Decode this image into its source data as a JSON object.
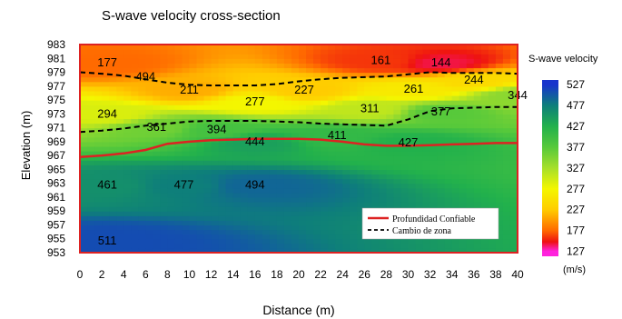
{
  "chart_data": {
    "type": "heatmap",
    "title": "S-wave velocity cross-section",
    "xlabel": "Distance (m)",
    "ylabel": "Elevation (m)",
    "xlim": [
      0,
      40
    ],
    "ylim": [
      953,
      983
    ],
    "x_ticks": [
      "0",
      "2",
      "4",
      "6",
      "8",
      "10",
      "12",
      "14",
      "16",
      "18",
      "20",
      "22",
      "24",
      "26",
      "28",
      "30",
      "32",
      "34",
      "36",
      "38",
      "40"
    ],
    "y_ticks": [
      "953",
      "955",
      "957",
      "959",
      "961",
      "963",
      "965",
      "967",
      "969",
      "971",
      "973",
      "975",
      "977",
      "979",
      "981",
      "983"
    ],
    "colorbar": {
      "title": "S-wave velocity",
      "unit": "(m/s)",
      "ticks": [
        "527",
        "477",
        "427",
        "377",
        "327",
        "277",
        "227",
        "177",
        "127"
      ],
      "stops": [
        {
          "value": 527,
          "color": "#1734cc"
        },
        {
          "value": 477,
          "color": "#0e7f7a"
        },
        {
          "value": 427,
          "color": "#22b14c"
        },
        {
          "value": 377,
          "color": "#57c93b"
        },
        {
          "value": 327,
          "color": "#a6df2a"
        },
        {
          "value": 277,
          "color": "#f4f600"
        },
        {
          "value": 227,
          "color": "#ffcc00"
        },
        {
          "value": 177,
          "color": "#ff6a00"
        },
        {
          "value": 150,
          "color": "#ee1111"
        },
        {
          "value": 127,
          "color": "#ff22dd"
        }
      ]
    },
    "velocity_labels": [
      {
        "text": "177",
        "x": 2.5,
        "y": 980.3
      },
      {
        "text": "494",
        "x": 6.0,
        "y": 978.3
      },
      {
        "text": "161",
        "x": 27.5,
        "y": 980.6
      },
      {
        "text": "144",
        "x": 33.0,
        "y": 980.3
      },
      {
        "text": "211",
        "x": 10.0,
        "y": 976.4
      },
      {
        "text": "227",
        "x": 20.5,
        "y": 976.4
      },
      {
        "text": "261",
        "x": 30.5,
        "y": 976.5
      },
      {
        "text": "244",
        "x": 36.0,
        "y": 977.8
      },
      {
        "text": "344",
        "x": 40.0,
        "y": 975.6
      },
      {
        "text": "277",
        "x": 16.0,
        "y": 974.7
      },
      {
        "text": "294",
        "x": 2.5,
        "y": 972.9
      },
      {
        "text": "311",
        "x": 26.5,
        "y": 973.7
      },
      {
        "text": "377",
        "x": 33.0,
        "y": 973.2
      },
      {
        "text": "361",
        "x": 7.0,
        "y": 971.0
      },
      {
        "text": "394",
        "x": 12.5,
        "y": 970.7
      },
      {
        "text": "411",
        "x": 23.5,
        "y": 969.8
      },
      {
        "text": "444",
        "x": 16.0,
        "y": 968.9
      },
      {
        "text": "427",
        "x": 30.0,
        "y": 968.8
      },
      {
        "text": "461",
        "x": 2.5,
        "y": 962.7
      },
      {
        "text": "477",
        "x": 9.5,
        "y": 962.7
      },
      {
        "text": "494",
        "x": 16.0,
        "y": 962.7
      },
      {
        "text": "511",
        "x": 2.5,
        "y": 954.6
      }
    ],
    "series": [
      {
        "name": "Profundidad Confiable",
        "color": "#dd2222",
        "style": "solid",
        "x": [
          0,
          2,
          4,
          6,
          8,
          10,
          12,
          14,
          16,
          18,
          20,
          22,
          24,
          26,
          28,
          30,
          32,
          34,
          36,
          38,
          40
        ],
        "y": [
          966.8,
          967.0,
          967.3,
          967.8,
          968.7,
          969.0,
          969.2,
          969.3,
          969.4,
          969.4,
          969.4,
          969.3,
          969.0,
          968.6,
          968.4,
          968.4,
          968.5,
          968.6,
          968.7,
          968.8,
          968.8
        ]
      },
      {
        "name": "Cambio de zona",
        "color": "#000000",
        "style": "dashed",
        "x": [
          0,
          2,
          4,
          6,
          8,
          10,
          12,
          14,
          16,
          18,
          20,
          22,
          24,
          26,
          28,
          30,
          32,
          34,
          36,
          38,
          40
        ],
        "y": [
          970.4,
          970.6,
          970.9,
          971.3,
          971.6,
          971.9,
          972.0,
          972.0,
          972.0,
          971.9,
          971.8,
          971.6,
          971.5,
          971.4,
          971.3,
          972.2,
          973.4,
          973.8,
          973.9,
          974.0,
          974.0
        ]
      },
      {
        "name": "",
        "color": "#000000",
        "style": "dashed",
        "x": [
          0,
          2,
          4,
          6,
          8,
          10,
          12,
          14,
          16,
          18,
          20,
          22,
          24,
          26,
          28,
          30,
          32,
          34,
          36,
          38,
          40
        ],
        "y": [
          979.0,
          978.8,
          978.5,
          978.0,
          977.5,
          977.2,
          977.1,
          977.1,
          977.1,
          977.3,
          977.7,
          978.0,
          978.2,
          978.3,
          978.4,
          978.7,
          979.0,
          978.9,
          978.9,
          978.9,
          978.8
        ]
      }
    ],
    "legend": {
      "placement": "bottom-right inside plot",
      "entries": [
        "Profundidad Confiable",
        "Cambio de zona"
      ]
    }
  }
}
